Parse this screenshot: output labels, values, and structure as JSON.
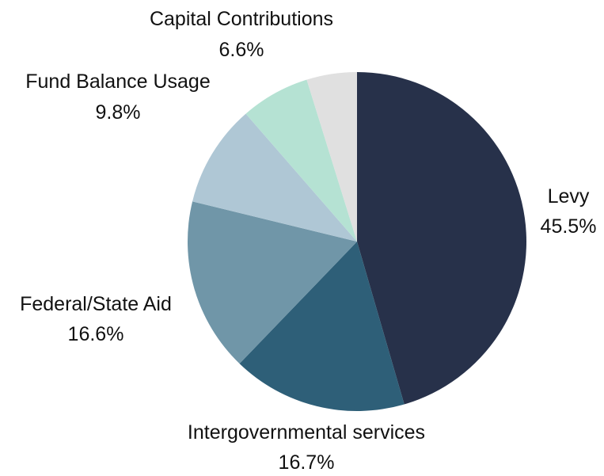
{
  "chart_data": {
    "type": "pie",
    "title": "",
    "slices": [
      {
        "label": "Levy",
        "value": 45.5,
        "value_label": "45.5%",
        "color": "#27314A"
      },
      {
        "label": "Intergovernmental services",
        "value": 16.7,
        "value_label": "16.7%",
        "color": "#2E5F78"
      },
      {
        "label": "Federal/State Aid",
        "value": 16.6,
        "value_label": "16.6%",
        "color": "#7096A8"
      },
      {
        "label": "Fund Balance Usage",
        "value": 9.8,
        "value_label": "9.8%",
        "color": "#AFC7D5"
      },
      {
        "label": "Capital Contributions",
        "value": 6.6,
        "value_label": "6.6%",
        "color": "#B5E2D3"
      },
      {
        "label": "",
        "value": 4.8,
        "value_label": "",
        "color": "#E0E0E0"
      }
    ],
    "start_angle": "12 o'clock",
    "direction": "clockwise",
    "legend": "none",
    "labels": "outside"
  }
}
